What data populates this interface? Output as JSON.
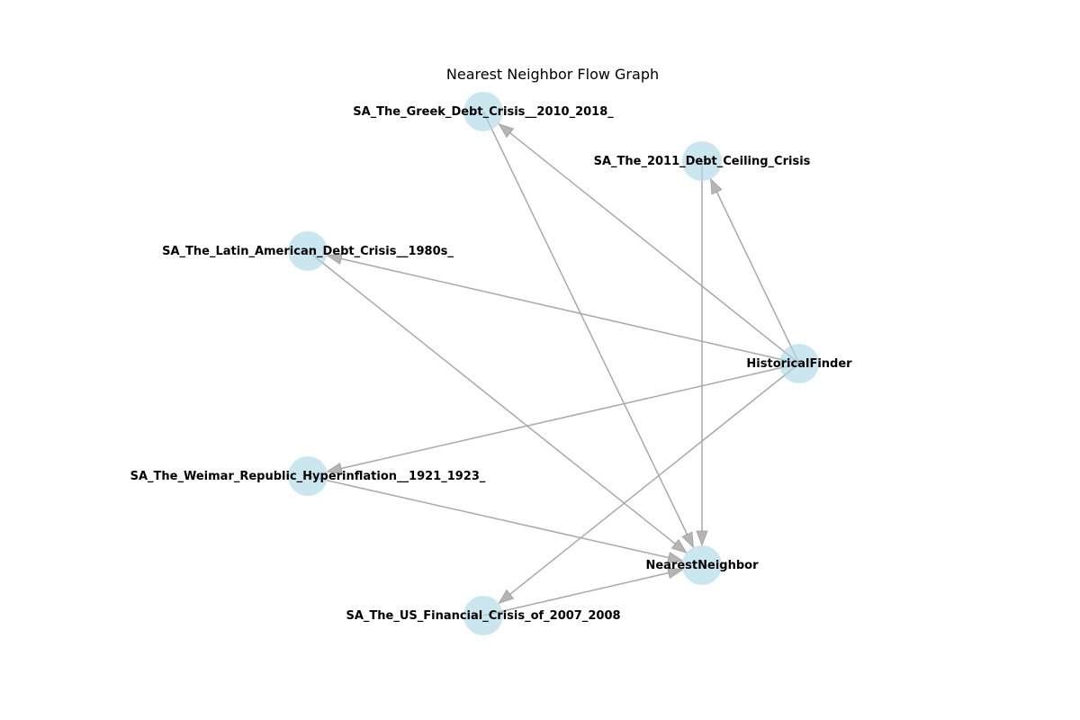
{
  "title": "Nearest Neighbor Flow Graph",
  "colors": {
    "node_fill": "#add8e6",
    "edge_color": "#a9a9a9",
    "label_color": "#000000"
  },
  "nodes": [
    {
      "id": "historical",
      "label": "HistoricalFinder"
    },
    {
      "id": "debt2011",
      "label": "SA_The_2011_Debt_Ceiling_Crisis"
    },
    {
      "id": "greek",
      "label": "SA_The_Greek_Debt_Crisis__2010_2018_"
    },
    {
      "id": "latin",
      "label": "SA_The_Latin_American_Debt_Crisis__1980s_"
    },
    {
      "id": "weimar",
      "label": "SA_The_Weimar_Republic_Hyperinflation__1921_1923_"
    },
    {
      "id": "usfin",
      "label": "SA_The_US_Financial_Crisis_of_2007_2008"
    },
    {
      "id": "nearest",
      "label": "NearestNeighbor"
    }
  ],
  "edges": [
    {
      "from": "historical",
      "to": "debt2011"
    },
    {
      "from": "historical",
      "to": "greek"
    },
    {
      "from": "historical",
      "to": "latin"
    },
    {
      "from": "historical",
      "to": "weimar"
    },
    {
      "from": "historical",
      "to": "usfin"
    },
    {
      "from": "debt2011",
      "to": "nearest"
    },
    {
      "from": "greek",
      "to": "nearest"
    },
    {
      "from": "latin",
      "to": "nearest"
    },
    {
      "from": "weimar",
      "to": "nearest"
    },
    {
      "from": "usfin",
      "to": "nearest"
    }
  ]
}
